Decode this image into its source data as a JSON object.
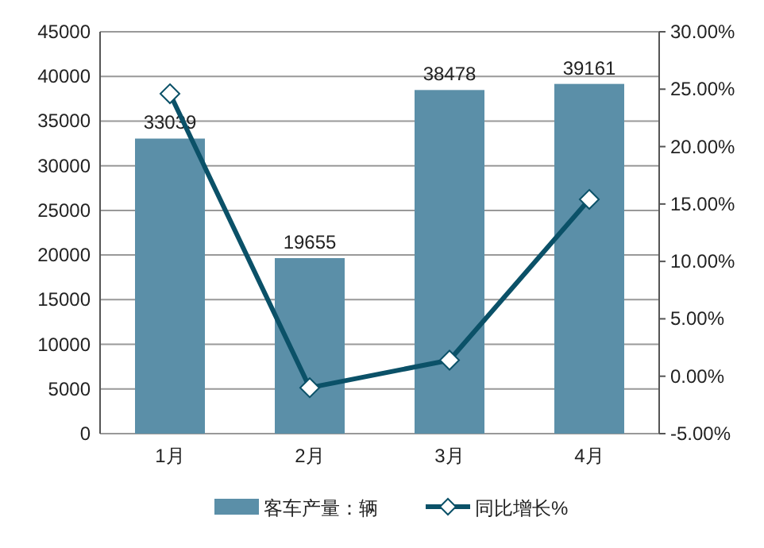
{
  "chart_data": {
    "type": "bar",
    "categories": [
      "1月",
      "2月",
      "3月",
      "4月"
    ],
    "series": [
      {
        "name": "客车产量：辆",
        "color": "#5b8fa8",
        "values": [
          33039,
          19655,
          38478,
          39161
        ],
        "value_labels": [
          "33039",
          "19655",
          "38478",
          "39161"
        ]
      },
      {
        "name": "同比增长%",
        "type": "line",
        "axis": "y2",
        "color": "#0b5168",
        "marker": "diamond",
        "values": [
          24.6,
          -1.0,
          1.4,
          15.4
        ]
      }
    ],
    "ylim": [
      0,
      45000
    ],
    "yticks": [
      0,
      5000,
      10000,
      15000,
      20000,
      25000,
      30000,
      35000,
      40000,
      45000
    ],
    "y2lim": [
      -5,
      30
    ],
    "y2ticks": [
      {
        "value": -5,
        "label": "-5.00%"
      },
      {
        "value": 0,
        "label": "0.00%"
      },
      {
        "value": 5,
        "label": "5.00%"
      },
      {
        "value": 10,
        "label": "10.00%"
      },
      {
        "value": 15,
        "label": "15.00%"
      },
      {
        "value": 20,
        "label": "20.00%"
      },
      {
        "value": 25,
        "label": "25.00%"
      },
      {
        "value": 30,
        "label": "30.00%"
      }
    ],
    "grid": "y",
    "legend": "bottom"
  }
}
